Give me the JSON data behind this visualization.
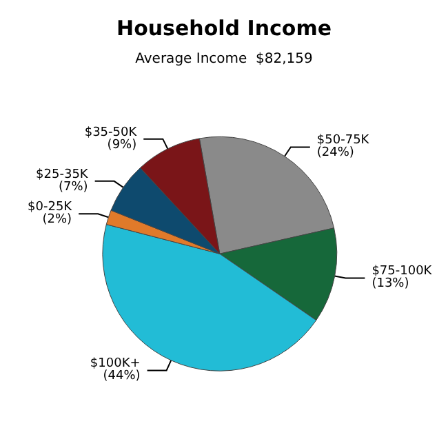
{
  "chart_data": {
    "type": "pie",
    "title": "Household Income",
    "subtitle": "Average Income  $82,159",
    "categories": [
      "$50-75K",
      "$75-100K",
      "$100K+",
      "$0-25K",
      "$25-35K",
      "$35-50K"
    ],
    "values": [
      24,
      13,
      44,
      2,
      7,
      9
    ],
    "colors": [
      "#8a8a8a",
      "#16683a",
      "#22bcd6",
      "#e07a2a",
      "#0e4a6e",
      "#7a1518"
    ],
    "value_labels": [
      "(24%)",
      "(13%)",
      "(44%)",
      "(2%)",
      "(7%)",
      "(9%)"
    ],
    "legend": false
  }
}
